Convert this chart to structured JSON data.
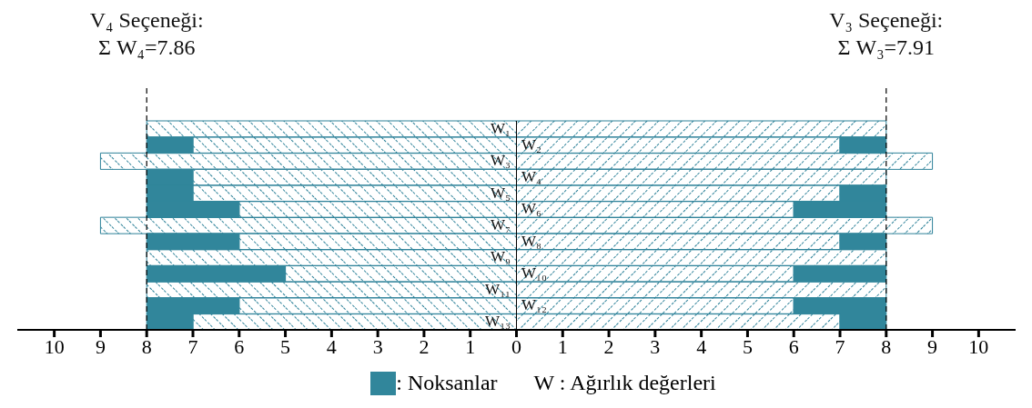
{
  "chart_data": {
    "type": "bar",
    "orientation": "horizontal",
    "stacked": true,
    "categories": [
      "W₁",
      "W₂",
      "W₃",
      "W₄",
      "W₅",
      "W₆",
      "W₇",
      "W₈",
      "W₉",
      "W₁₀",
      "W₁₁",
      "W₁₂",
      "W₁₃"
    ],
    "series": [
      {
        "color": "#2e8299",
        "values": [
          -8,
          -7,
          -9,
          -7,
          -7,
          -6,
          -9,
          -6,
          -8,
          -5,
          -8,
          -6,
          -7
        ]
      },
      {
        "name": ": Noksanlar",
        "color": "#31869b",
        "values": [
          0,
          -1,
          0,
          -1,
          -1,
          -2,
          0,
          -2,
          0,
          -3,
          0,
          -2,
          -1
        ]
      },
      {
        "color": "#2e8299",
        "values": [
          8,
          7,
          9,
          8,
          7,
          6,
          9,
          7,
          8,
          6,
          8,
          6,
          7
        ]
      },
      {
        "color": "#31869b",
        "values": [
          0,
          1,
          0,
          0,
          1,
          2,
          0,
          1,
          0,
          2,
          0,
          2,
          1
        ]
      }
    ],
    "xlim": [
      -10.8,
      10.8
    ],
    "xticks": [
      {
        "value": -10,
        "label": "10"
      },
      {
        "value": -9,
        "label": "9"
      },
      {
        "value": -8,
        "label": "8"
      },
      {
        "value": -7,
        "label": "7"
      },
      {
        "value": -6,
        "label": "6"
      },
      {
        "value": -5,
        "label": "5"
      },
      {
        "value": -4,
        "label": "4"
      },
      {
        "value": -3,
        "label": "3"
      },
      {
        "value": -2,
        "label": "2"
      },
      {
        "value": -1,
        "label": "1"
      },
      0,
      1,
      2,
      3,
      4,
      5,
      6,
      7,
      8,
      9,
      10
    ],
    "ref_lines": [
      {
        "axis": "x",
        "value": -8,
        "line_style": "dashed",
        "color": "#000000"
      },
      {
        "axis": "x",
        "value": 8,
        "line_style": "dashed",
        "color": "#000000"
      }
    ],
    "annotations": [
      "V₄ Seçeneği:",
      "Σ W₄=7.86",
      "V₃ Seçeneği:",
      "Σ W₃=7.91",
      "W : Ağırlık değerleri"
    ],
    "legend": "bottom",
    "grid": false
  }
}
